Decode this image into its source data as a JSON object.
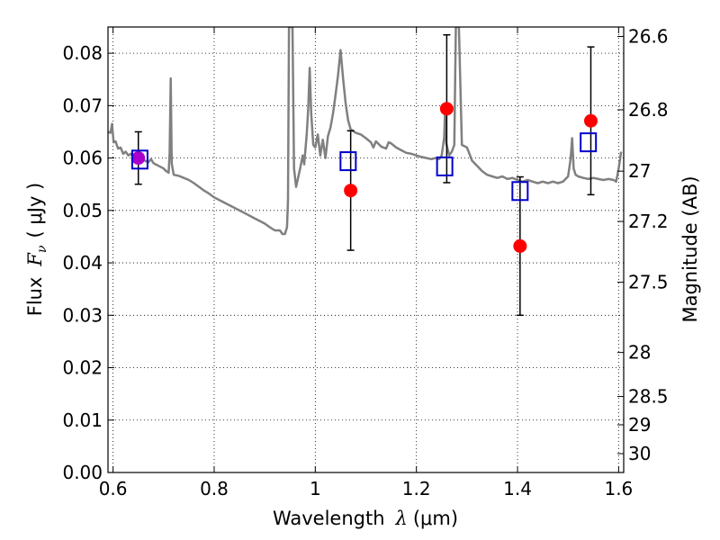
{
  "chart_data": {
    "type": "scatter",
    "xlabel_prefix": "Wavelength",
    "xlabel_symbol": "λ",
    "xlabel_unit": "(μm)",
    "ylabel_prefix": "Flux",
    "ylabel_symbol": "F",
    "ylabel_subscript": "ν",
    "ylabel_unit": "( μJy )",
    "y2label": "Magnitude (AB)",
    "xlim": [
      0.59,
      1.61
    ],
    "ylim": [
      0.0,
      0.085
    ],
    "xticks": [
      0.6,
      0.8,
      1.0,
      1.2,
      1.4,
      1.6
    ],
    "xtick_labels": [
      "0.6",
      "0.8",
      "1",
      "1.2",
      "1.4",
      "1.6"
    ],
    "yticks": [
      0.0,
      0.01,
      0.02,
      0.03,
      0.04,
      0.05,
      0.06,
      0.07,
      0.08
    ],
    "ytick_labels": [
      "0.00",
      "0.01",
      "0.02",
      "0.03",
      "0.04",
      "0.05",
      "0.06",
      "0.07",
      "0.08"
    ],
    "magnitude_ticks": [
      {
        "label": "26.6",
        "flux": 0.0832
      },
      {
        "label": "26.8",
        "flux": 0.0692
      },
      {
        "label": "27",
        "flux": 0.0575
      },
      {
        "label": "27.2",
        "flux": 0.0479
      },
      {
        "label": "27.5",
        "flux": 0.0363
      },
      {
        "label": "28",
        "flux": 0.0229
      },
      {
        "label": "28.5",
        "flux": 0.0145
      },
      {
        "label": "29",
        "flux": 0.0091
      },
      {
        "label": "30",
        "flux": 0.0036
      }
    ],
    "grid": true,
    "colors": {
      "spectrum": "#808080",
      "observed": "#ff0000",
      "model": "#0000cc",
      "errorbar": "#000000",
      "overlap": "#aa00cc"
    },
    "series": [
      {
        "kind": "line",
        "points": [
          [
            0.59,
            0.065
          ],
          [
            0.595,
            0.0648
          ],
          [
            0.598,
            0.0665
          ],
          [
            0.601,
            0.063
          ],
          [
            0.605,
            0.0632
          ],
          [
            0.61,
            0.0618
          ],
          [
            0.615,
            0.062
          ],
          [
            0.62,
            0.0608
          ],
          [
            0.625,
            0.0612
          ],
          [
            0.63,
            0.0605
          ],
          [
            0.635,
            0.0608
          ],
          [
            0.64,
            0.0602
          ],
          [
            0.65,
            0.0604
          ],
          [
            0.66,
            0.0596
          ],
          [
            0.67,
            0.0592
          ],
          [
            0.675,
            0.0598
          ],
          [
            0.68,
            0.059
          ],
          [
            0.69,
            0.0585
          ],
          [
            0.7,
            0.058
          ],
          [
            0.705,
            0.0575
          ],
          [
            0.71,
            0.0572
          ],
          [
            0.712,
            0.061
          ],
          [
            0.714,
            0.0752
          ],
          [
            0.716,
            0.059
          ],
          [
            0.72,
            0.0568
          ],
          [
            0.73,
            0.0566
          ],
          [
            0.74,
            0.0562
          ],
          [
            0.75,
            0.0558
          ],
          [
            0.76,
            0.0552
          ],
          [
            0.77,
            0.0545
          ],
          [
            0.78,
            0.0538
          ],
          [
            0.79,
            0.0532
          ],
          [
            0.8,
            0.0525
          ],
          [
            0.82,
            0.0515
          ],
          [
            0.84,
            0.0505
          ],
          [
            0.86,
            0.0495
          ],
          [
            0.88,
            0.0485
          ],
          [
            0.9,
            0.0475
          ],
          [
            0.91,
            0.0468
          ],
          [
            0.92,
            0.0462
          ],
          [
            0.93,
            0.0462
          ],
          [
            0.935,
            0.0455
          ],
          [
            0.94,
            0.0455
          ],
          [
            0.944,
            0.0468
          ],
          [
            0.946,
            0.052
          ],
          [
            0.948,
            0.085
          ],
          [
            0.95,
            0.085
          ],
          [
            0.952,
            0.085
          ],
          [
            0.955,
            0.085
          ],
          [
            0.958,
            0.058
          ],
          [
            0.962,
            0.0545
          ],
          [
            0.97,
            0.058
          ],
          [
            0.975,
            0.0605
          ],
          [
            0.978,
            0.0588
          ],
          [
            0.983,
            0.0645
          ],
          [
            0.986,
            0.0695
          ],
          [
            0.989,
            0.0772
          ],
          [
            0.992,
            0.0685
          ],
          [
            0.996,
            0.0625
          ],
          [
            1.0,
            0.062
          ],
          [
            1.005,
            0.0645
          ],
          [
            1.01,
            0.0605
          ],
          [
            1.015,
            0.0635
          ],
          [
            1.02,
            0.06
          ],
          [
            1.025,
            0.0642
          ],
          [
            1.03,
            0.0658
          ],
          [
            1.035,
            0.0685
          ],
          [
            1.04,
            0.072
          ],
          [
            1.045,
            0.0758
          ],
          [
            1.05,
            0.0806
          ],
          [
            1.055,
            0.0752
          ],
          [
            1.06,
            0.0705
          ],
          [
            1.065,
            0.0672
          ],
          [
            1.07,
            0.0655
          ],
          [
            1.08,
            0.0648
          ],
          [
            1.09,
            0.0645
          ],
          [
            1.1,
            0.0638
          ],
          [
            1.11,
            0.063
          ],
          [
            1.115,
            0.062
          ],
          [
            1.12,
            0.0632
          ],
          [
            1.13,
            0.0622
          ],
          [
            1.14,
            0.0618
          ],
          [
            1.145,
            0.063
          ],
          [
            1.15,
            0.0628
          ],
          [
            1.16,
            0.062
          ],
          [
            1.17,
            0.0615
          ],
          [
            1.18,
            0.061
          ],
          [
            1.19,
            0.0608
          ],
          [
            1.2,
            0.0605
          ],
          [
            1.21,
            0.0602
          ],
          [
            1.22,
            0.06
          ],
          [
            1.23,
            0.0598
          ],
          [
            1.238,
            0.06
          ],
          [
            1.245,
            0.0598
          ],
          [
            1.25,
            0.0605
          ],
          [
            1.255,
            0.064
          ],
          [
            1.257,
            0.07
          ],
          [
            1.259,
            0.0628
          ],
          [
            1.265,
            0.0605
          ],
          [
            1.27,
            0.0612
          ],
          [
            1.275,
            0.0625
          ],
          [
            1.278,
            0.085
          ],
          [
            1.284,
            0.085
          ],
          [
            1.29,
            0.0625
          ],
          [
            1.3,
            0.062
          ],
          [
            1.31,
            0.0595
          ],
          [
            1.32,
            0.0585
          ],
          [
            1.33,
            0.0575
          ],
          [
            1.34,
            0.0568
          ],
          [
            1.35,
            0.0565
          ],
          [
            1.36,
            0.0562
          ],
          [
            1.37,
            0.0565
          ],
          [
            1.38,
            0.056
          ],
          [
            1.39,
            0.0562
          ],
          [
            1.4,
            0.0558
          ],
          [
            1.41,
            0.0555
          ],
          [
            1.42,
            0.0558
          ],
          [
            1.43,
            0.0555
          ],
          [
            1.44,
            0.0552
          ],
          [
            1.45,
            0.0555
          ],
          [
            1.46,
            0.0552
          ],
          [
            1.47,
            0.0555
          ],
          [
            1.48,
            0.0552
          ],
          [
            1.49,
            0.0555
          ],
          [
            1.5,
            0.0565
          ],
          [
            1.505,
            0.0598
          ],
          [
            1.508,
            0.0638
          ],
          [
            1.511,
            0.058
          ],
          [
            1.515,
            0.0568
          ],
          [
            1.52,
            0.0565
          ],
          [
            1.53,
            0.0562
          ],
          [
            1.54,
            0.056
          ],
          [
            1.55,
            0.0562
          ],
          [
            1.56,
            0.056
          ],
          [
            1.57,
            0.0558
          ],
          [
            1.58,
            0.056
          ],
          [
            1.59,
            0.0558
          ],
          [
            1.595,
            0.0555
          ],
          [
            1.6,
            0.058
          ],
          [
            1.605,
            0.0612
          ]
        ]
      },
      {
        "kind": "observed",
        "points": [
          {
            "x": 0.65,
            "y": 0.06,
            "err": 0.005
          },
          {
            "x": 1.07,
            "y": 0.0538,
            "err": 0.0114
          },
          {
            "x": 1.26,
            "y": 0.0694,
            "err": 0.0141
          },
          {
            "x": 1.405,
            "y": 0.0432,
            "err": 0.0132
          },
          {
            "x": 1.545,
            "y": 0.0671,
            "err": 0.0141
          }
        ]
      },
      {
        "kind": "model",
        "points": [
          {
            "x": 0.653,
            "y": 0.0597
          },
          {
            "x": 1.065,
            "y": 0.0594
          },
          {
            "x": 1.256,
            "y": 0.0584
          },
          {
            "x": 1.405,
            "y": 0.0537
          },
          {
            "x": 1.54,
            "y": 0.063
          }
        ]
      }
    ]
  }
}
